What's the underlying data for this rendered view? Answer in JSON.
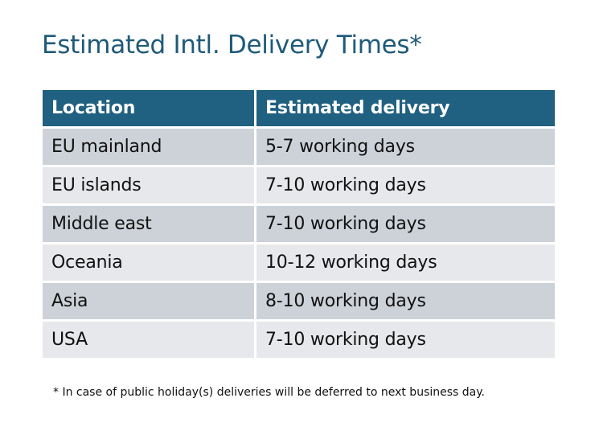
{
  "title": "Estimated Intl. Delivery Times*",
  "table": {
    "headers": [
      "Location",
      "Estimated delivery"
    ],
    "rows": [
      [
        "EU mainland",
        "5-7 working days"
      ],
      [
        "EU islands",
        "7-10 working days"
      ],
      [
        "Middle east",
        "7-10 working days"
      ],
      [
        "Oceania",
        "10-12 working days"
      ],
      [
        "Asia",
        "8-10 working days"
      ],
      [
        "USA",
        "7-10 working days"
      ]
    ]
  },
  "footnote": "* In case of public holiday(s) deliveries will be deferred to next business day.",
  "colors": {
    "title": "#1f5a7a",
    "header": "#206080",
    "row_odd": "#cdd2d9",
    "row_even": "#e6e8eb"
  }
}
